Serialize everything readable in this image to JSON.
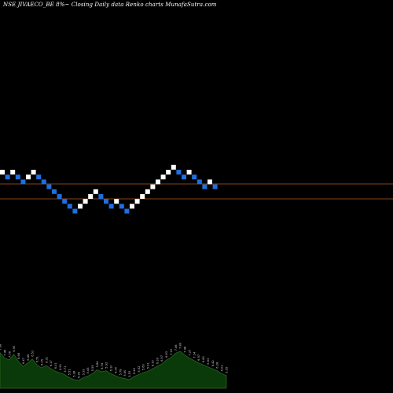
{
  "chart_data": {
    "type": "renko",
    "title": "NSE JIVAECO_BE 8%~  Closing Daily data  Renko  charts MunafaSutra.com",
    "colors": {
      "background": "#000000",
      "up_brick": "#ffffff",
      "down_brick": "#1e6fe0",
      "level_line": "#b35a1f",
      "volume_fill": "#0a3a0a",
      "volume_line": "#2e6b1f",
      "label_text": "#cccccc"
    },
    "bricks": [
      {
        "col": 0,
        "lvl": 0,
        "dir": "up"
      },
      {
        "col": 1,
        "lvl": -1,
        "dir": "down"
      },
      {
        "col": 2,
        "lvl": 0,
        "dir": "up"
      },
      {
        "col": 3,
        "lvl": -1,
        "dir": "down"
      },
      {
        "col": 4,
        "lvl": -2,
        "dir": "down"
      },
      {
        "col": 5,
        "lvl": -1,
        "dir": "up"
      },
      {
        "col": 6,
        "lvl": 0,
        "dir": "up"
      },
      {
        "col": 7,
        "lvl": -1,
        "dir": "down"
      },
      {
        "col": 8,
        "lvl": -2,
        "dir": "down"
      },
      {
        "col": 9,
        "lvl": -3,
        "dir": "down"
      },
      {
        "col": 10,
        "lvl": -4,
        "dir": "down"
      },
      {
        "col": 11,
        "lvl": -5,
        "dir": "down"
      },
      {
        "col": 12,
        "lvl": -6,
        "dir": "down"
      },
      {
        "col": 13,
        "lvl": -7,
        "dir": "down"
      },
      {
        "col": 14,
        "lvl": -8,
        "dir": "down"
      },
      {
        "col": 15,
        "lvl": -7,
        "dir": "up"
      },
      {
        "col": 16,
        "lvl": -6,
        "dir": "up"
      },
      {
        "col": 17,
        "lvl": -5,
        "dir": "up"
      },
      {
        "col": 18,
        "lvl": -4,
        "dir": "up"
      },
      {
        "col": 19,
        "lvl": -5,
        "dir": "down"
      },
      {
        "col": 20,
        "lvl": -6,
        "dir": "down"
      },
      {
        "col": 21,
        "lvl": -7,
        "dir": "down"
      },
      {
        "col": 22,
        "lvl": -6,
        "dir": "up"
      },
      {
        "col": 23,
        "lvl": -7,
        "dir": "down"
      },
      {
        "col": 24,
        "lvl": -8,
        "dir": "down"
      },
      {
        "col": 25,
        "lvl": -7,
        "dir": "up"
      },
      {
        "col": 26,
        "lvl": -6,
        "dir": "up"
      },
      {
        "col": 27,
        "lvl": -5,
        "dir": "up"
      },
      {
        "col": 28,
        "lvl": -4,
        "dir": "up"
      },
      {
        "col": 29,
        "lvl": -3,
        "dir": "up"
      },
      {
        "col": 30,
        "lvl": -2,
        "dir": "up"
      },
      {
        "col": 31,
        "lvl": -1,
        "dir": "up"
      },
      {
        "col": 32,
        "lvl": 0,
        "dir": "up"
      },
      {
        "col": 33,
        "lvl": 1,
        "dir": "up"
      },
      {
        "col": 34,
        "lvl": 0,
        "dir": "down"
      },
      {
        "col": 35,
        "lvl": -1,
        "dir": "down"
      },
      {
        "col": 36,
        "lvl": 0,
        "dir": "up"
      },
      {
        "col": 37,
        "lvl": -1,
        "dir": "down"
      },
      {
        "col": 38,
        "lvl": -2,
        "dir": "down"
      },
      {
        "col": 39,
        "lvl": -3,
        "dir": "down"
      },
      {
        "col": 40,
        "lvl": -2,
        "dir": "up"
      },
      {
        "col": 41,
        "lvl": -3,
        "dir": "down"
      }
    ],
    "volume_labels": [
      "7.68",
      "7.46",
      "7.06",
      "6.90",
      "6.68",
      "6.47",
      "6.46",
      "6.53",
      "6.51",
      "6.25",
      "6.31",
      "6.17",
      "6.01",
      "5.90",
      "5.71",
      "5.51",
      "5.38",
      "5.36",
      "5.39",
      "5.43",
      "5.59",
      "5.84",
      "5.74",
      "5.92",
      "6.10",
      "6.00",
      "5.78",
      "5.60",
      "5.53",
      "5.43",
      "5.52",
      "5.60",
      "5.91",
      "6.10",
      "6.39",
      "6.57",
      "6.83",
      "7.20",
      "7.46",
      "7.89",
      "7.48",
      "7.27",
      "7.14",
      "6.97",
      "6.80",
      "6.63",
      "6.42",
      "6.28",
      "6.03",
      "5.95"
    ],
    "volume_levels": [
      0.73,
      0.62,
      0.58,
      0.7,
      0.55,
      0.45,
      0.52,
      0.6,
      0.48,
      0.42,
      0.47,
      0.4,
      0.35,
      0.32,
      0.28,
      0.22,
      0.18,
      0.16,
      0.22,
      0.25,
      0.3,
      0.38,
      0.34,
      0.36,
      0.3,
      0.26,
      0.22,
      0.2,
      0.18,
      0.24,
      0.28,
      0.32,
      0.35,
      0.4,
      0.45,
      0.5,
      0.58,
      0.63,
      0.72,
      0.76,
      0.68,
      0.62,
      0.57,
      0.52,
      0.48,
      0.44,
      0.4,
      0.36,
      0.3,
      0.26
    ]
  }
}
